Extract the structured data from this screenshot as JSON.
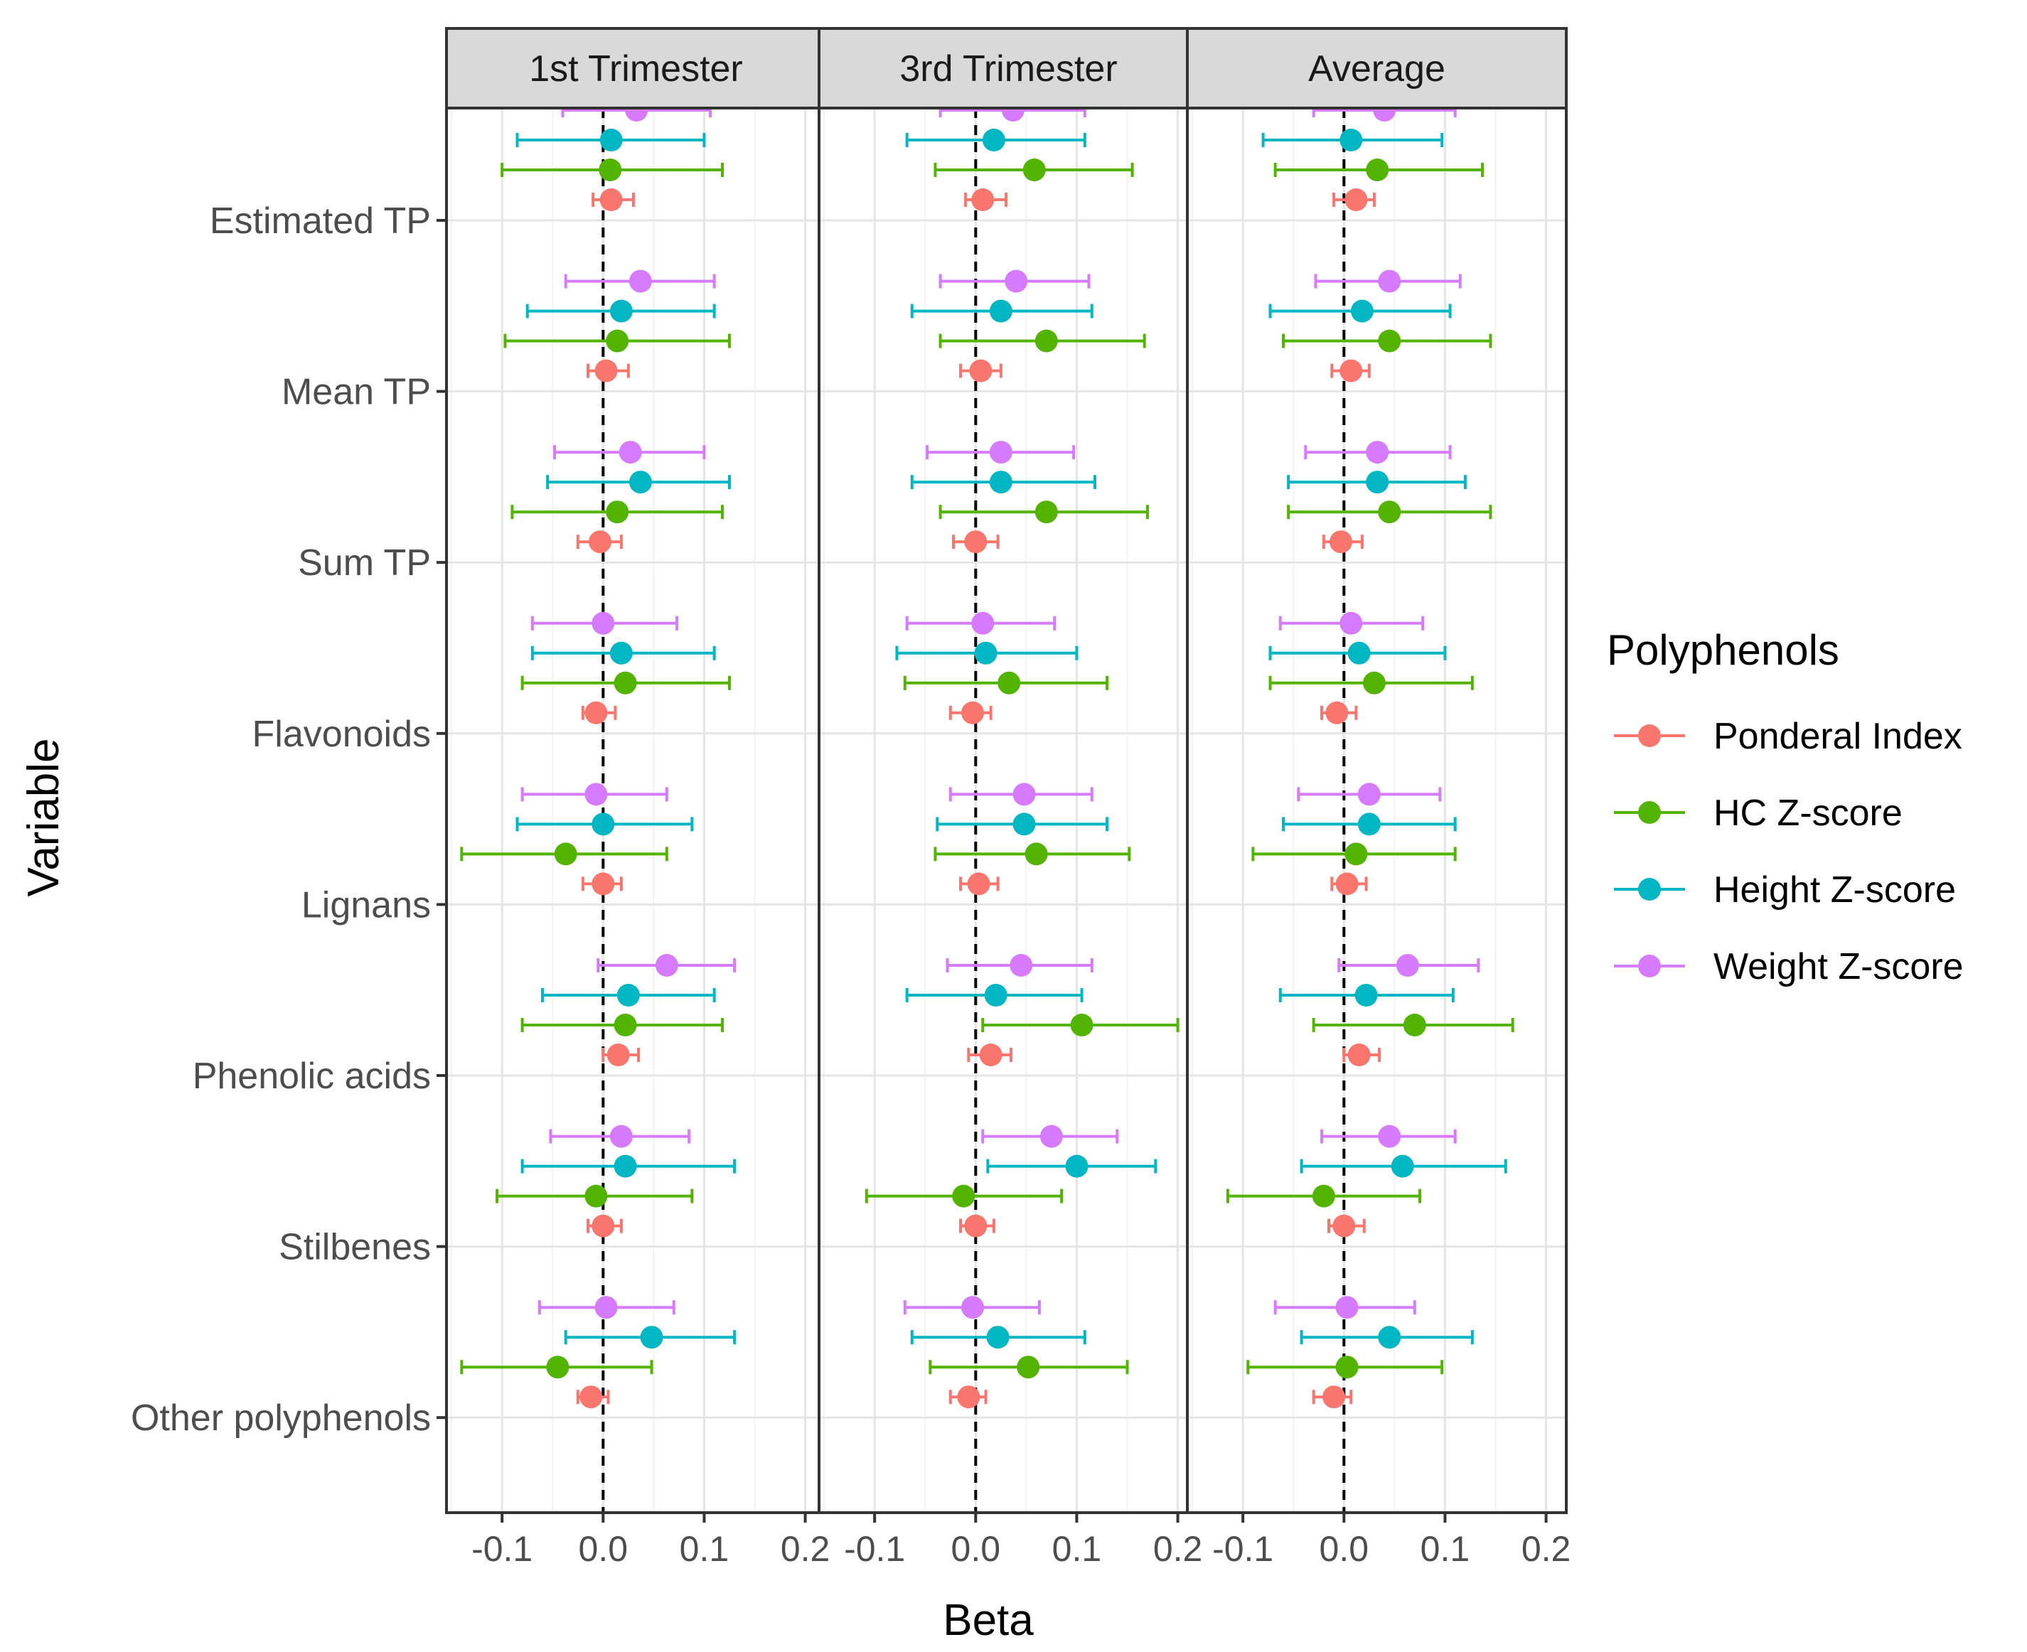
{
  "chart_data": {
    "type": "forest",
    "xlabel": "Beta",
    "ylabel": "Variable",
    "xlim": [
      -0.155,
      0.22
    ],
    "xticks": [
      -0.1,
      0.0,
      0.1,
      0.2
    ],
    "xtick_labels": [
      "-0.1",
      "0.0",
      "0.1",
      "0.2"
    ],
    "reference_line": 0,
    "legend": {
      "title": "Polyphenols",
      "position": "right",
      "entries": [
        {
          "name": "Ponderal Index",
          "color": "#F8766D"
        },
        {
          "name": "HC  Z-score",
          "color": "#53B400"
        },
        {
          "name": "Height Z-score",
          "color": "#00B6C3"
        },
        {
          "name": "Weight Z-score",
          "color": "#D67BFF"
        }
      ]
    },
    "variables": [
      "Estimated TP",
      "Mean TP",
      "Sum TP",
      "Flavonoids",
      "Lignans",
      "Phenolic acids",
      "Stilbenes",
      "Other polyphenols"
    ],
    "series_order": [
      "Weight Z-score",
      "Height Z-score",
      "HC  Z-score",
      "Ponderal Index"
    ],
    "panels": [
      {
        "title": "1st Trimester",
        "rows": [
          {
            "variable": "Estimated TP",
            "estimates": {
              "Weight Z-score": [
                0.033,
                -0.04,
                0.106
              ],
              "Height Z-score": [
                0.008,
                -0.085,
                0.1
              ],
              "HC  Z-score": [
                0.007,
                -0.1,
                0.118
              ],
              "Ponderal Index": [
                0.008,
                -0.01,
                0.03
              ]
            }
          },
          {
            "variable": "Mean TP",
            "estimates": {
              "Weight Z-score": [
                0.037,
                -0.037,
                0.11
              ],
              "Height Z-score": [
                0.018,
                -0.075,
                0.11
              ],
              "HC  Z-score": [
                0.014,
                -0.097,
                0.125
              ],
              "Ponderal Index": [
                0.003,
                -0.015,
                0.025
              ]
            }
          },
          {
            "variable": "Sum TP",
            "estimates": {
              "Weight Z-score": [
                0.027,
                -0.048,
                0.1
              ],
              "Height Z-score": [
                0.037,
                -0.055,
                0.125
              ],
              "HC  Z-score": [
                0.014,
                -0.09,
                0.118
              ],
              "Ponderal Index": [
                -0.003,
                -0.025,
                0.018
              ]
            }
          },
          {
            "variable": "Flavonoids",
            "estimates": {
              "Weight Z-score": [
                0.0,
                -0.07,
                0.073
              ],
              "Height Z-score": [
                0.018,
                -0.07,
                0.11
              ],
              "HC  Z-score": [
                0.022,
                -0.08,
                0.125
              ],
              "Ponderal Index": [
                -0.007,
                -0.02,
                0.012
              ]
            }
          },
          {
            "variable": "Lignans",
            "estimates": {
              "Weight Z-score": [
                -0.007,
                -0.08,
                0.063
              ],
              "Height Z-score": [
                0.0,
                -0.085,
                0.088
              ],
              "HC  Z-score": [
                -0.037,
                -0.14,
                0.063
              ],
              "Ponderal Index": [
                0.0,
                -0.02,
                0.018
              ]
            }
          },
          {
            "variable": "Phenolic acids",
            "estimates": {
              "Weight Z-score": [
                0.063,
                -0.005,
                0.13
              ],
              "Height Z-score": [
                0.025,
                -0.06,
                0.11
              ],
              "HC  Z-score": [
                0.022,
                -0.08,
                0.118
              ],
              "Ponderal Index": [
                0.015,
                0.0,
                0.035
              ]
            }
          },
          {
            "variable": "Stilbenes",
            "estimates": {
              "Weight Z-score": [
                0.018,
                -0.052,
                0.085
              ],
              "Height Z-score": [
                0.022,
                -0.08,
                0.13
              ],
              "HC  Z-score": [
                -0.007,
                -0.105,
                0.088
              ],
              "Ponderal Index": [
                0.0,
                -0.015,
                0.018
              ]
            }
          },
          {
            "variable": "Other polyphenols",
            "estimates": {
              "Weight Z-score": [
                0.003,
                -0.063,
                0.07
              ],
              "Height Z-score": [
                0.048,
                -0.037,
                0.13
              ],
              "HC  Z-score": [
                -0.045,
                -0.14,
                0.048
              ],
              "Ponderal Index": [
                -0.012,
                -0.025,
                0.005
              ]
            }
          }
        ]
      },
      {
        "title": "3rd Trimester",
        "rows": [
          {
            "variable": "Estimated TP",
            "estimates": {
              "Weight Z-score": [
                0.037,
                -0.035,
                0.108
              ],
              "Height Z-score": [
                0.018,
                -0.068,
                0.108
              ],
              "HC  Z-score": [
                0.058,
                -0.04,
                0.155
              ],
              "Ponderal Index": [
                0.007,
                -0.01,
                0.03
              ]
            }
          },
          {
            "variable": "Mean TP",
            "estimates": {
              "Weight Z-score": [
                0.04,
                -0.035,
                0.112
              ],
              "Height Z-score": [
                0.025,
                -0.063,
                0.115
              ],
              "HC  Z-score": [
                0.07,
                -0.035,
                0.167
              ],
              "Ponderal Index": [
                0.005,
                -0.015,
                0.025
              ]
            }
          },
          {
            "variable": "Sum TP",
            "estimates": {
              "Weight Z-score": [
                0.025,
                -0.048,
                0.097
              ],
              "Height Z-score": [
                0.025,
                -0.063,
                0.118
              ],
              "HC  Z-score": [
                0.07,
                -0.035,
                0.17
              ],
              "Ponderal Index": [
                0.0,
                -0.022,
                0.022
              ]
            }
          },
          {
            "variable": "Flavonoids",
            "estimates": {
              "Weight Z-score": [
                0.007,
                -0.068,
                0.078
              ],
              "Height Z-score": [
                0.01,
                -0.078,
                0.1
              ],
              "HC  Z-score": [
                0.033,
                -0.07,
                0.13
              ],
              "Ponderal Index": [
                -0.003,
                -0.025,
                0.015
              ]
            }
          },
          {
            "variable": "Lignans",
            "estimates": {
              "Weight Z-score": [
                0.048,
                -0.025,
                0.115
              ],
              "Height Z-score": [
                0.048,
                -0.038,
                0.13
              ],
              "HC  Z-score": [
                0.06,
                -0.04,
                0.152
              ],
              "Ponderal Index": [
                0.003,
                -0.015,
                0.022
              ]
            }
          },
          {
            "variable": "Phenolic acids",
            "estimates": {
              "Weight Z-score": [
                0.045,
                -0.028,
                0.115
              ],
              "Height Z-score": [
                0.02,
                -0.068,
                0.105
              ],
              "HC  Z-score": [
                0.105,
                0.007,
                0.2
              ],
              "Ponderal Index": [
                0.015,
                -0.007,
                0.035
              ]
            }
          },
          {
            "variable": "Stilbenes",
            "estimates": {
              "Weight Z-score": [
                0.075,
                0.007,
                0.14
              ],
              "Height Z-score": [
                0.1,
                0.012,
                0.178
              ],
              "HC  Z-score": [
                -0.012,
                -0.108,
                0.085
              ],
              "Ponderal Index": [
                0.0,
                -0.015,
                0.018
              ]
            }
          },
          {
            "variable": "Other polyphenols",
            "estimates": {
              "Weight Z-score": [
                -0.003,
                -0.07,
                0.063
              ],
              "Height Z-score": [
                0.022,
                -0.063,
                0.108
              ],
              "HC  Z-score": [
                0.052,
                -0.045,
                0.15
              ],
              "Ponderal Index": [
                -0.007,
                -0.025,
                0.01
              ]
            }
          }
        ]
      },
      {
        "title": "Average",
        "rows": [
          {
            "variable": "Estimated TP",
            "estimates": {
              "Weight Z-score": [
                0.04,
                -0.03,
                0.11
              ],
              "Height Z-score": [
                0.007,
                -0.08,
                0.097
              ],
              "HC  Z-score": [
                0.033,
                -0.068,
                0.137
              ],
              "Ponderal Index": [
                0.012,
                -0.01,
                0.03
              ]
            }
          },
          {
            "variable": "Mean TP",
            "estimates": {
              "Weight Z-score": [
                0.045,
                -0.028,
                0.115
              ],
              "Height Z-score": [
                0.018,
                -0.073,
                0.105
              ],
              "HC  Z-score": [
                0.045,
                -0.06,
                0.145
              ],
              "Ponderal Index": [
                0.007,
                -0.012,
                0.025
              ]
            }
          },
          {
            "variable": "Sum TP",
            "estimates": {
              "Weight Z-score": [
                0.033,
                -0.038,
                0.105
              ],
              "Height Z-score": [
                0.033,
                -0.055,
                0.12
              ],
              "HC  Z-score": [
                0.045,
                -0.055,
                0.145
              ],
              "Ponderal Index": [
                -0.003,
                -0.02,
                0.018
              ]
            }
          },
          {
            "variable": "Flavonoids",
            "estimates": {
              "Weight Z-score": [
                0.007,
                -0.063,
                0.078
              ],
              "Height Z-score": [
                0.015,
                -0.073,
                0.1
              ],
              "HC  Z-score": [
                0.03,
                -0.073,
                0.127
              ],
              "Ponderal Index": [
                -0.007,
                -0.022,
                0.012
              ]
            }
          },
          {
            "variable": "Lignans",
            "estimates": {
              "Weight Z-score": [
                0.025,
                -0.045,
                0.095
              ],
              "Height Z-score": [
                0.025,
                -0.06,
                0.11
              ],
              "HC  Z-score": [
                0.012,
                -0.09,
                0.11
              ],
              "Ponderal Index": [
                0.003,
                -0.012,
                0.022
              ]
            }
          },
          {
            "variable": "Phenolic acids",
            "estimates": {
              "Weight Z-score": [
                0.063,
                -0.005,
                0.133
              ],
              "Height Z-score": [
                0.022,
                -0.063,
                0.108
              ],
              "HC  Z-score": [
                0.07,
                -0.03,
                0.167
              ],
              "Ponderal Index": [
                0.015,
                0.0,
                0.035
              ]
            }
          },
          {
            "variable": "Stilbenes",
            "estimates": {
              "Weight Z-score": [
                0.045,
                -0.022,
                0.11
              ],
              "Height Z-score": [
                0.058,
                -0.042,
                0.16
              ],
              "HC  Z-score": [
                -0.02,
                -0.115,
                0.075
              ],
              "Ponderal Index": [
                0.0,
                -0.015,
                0.02
              ]
            }
          },
          {
            "variable": "Other polyphenols",
            "estimates": {
              "Weight Z-score": [
                0.003,
                -0.068,
                0.07
              ],
              "Height Z-score": [
                0.045,
                -0.042,
                0.127
              ],
              "HC  Z-score": [
                0.003,
                -0.095,
                0.097
              ],
              "Ponderal Index": [
                -0.01,
                -0.03,
                0.007
              ]
            }
          }
        ]
      }
    ]
  }
}
